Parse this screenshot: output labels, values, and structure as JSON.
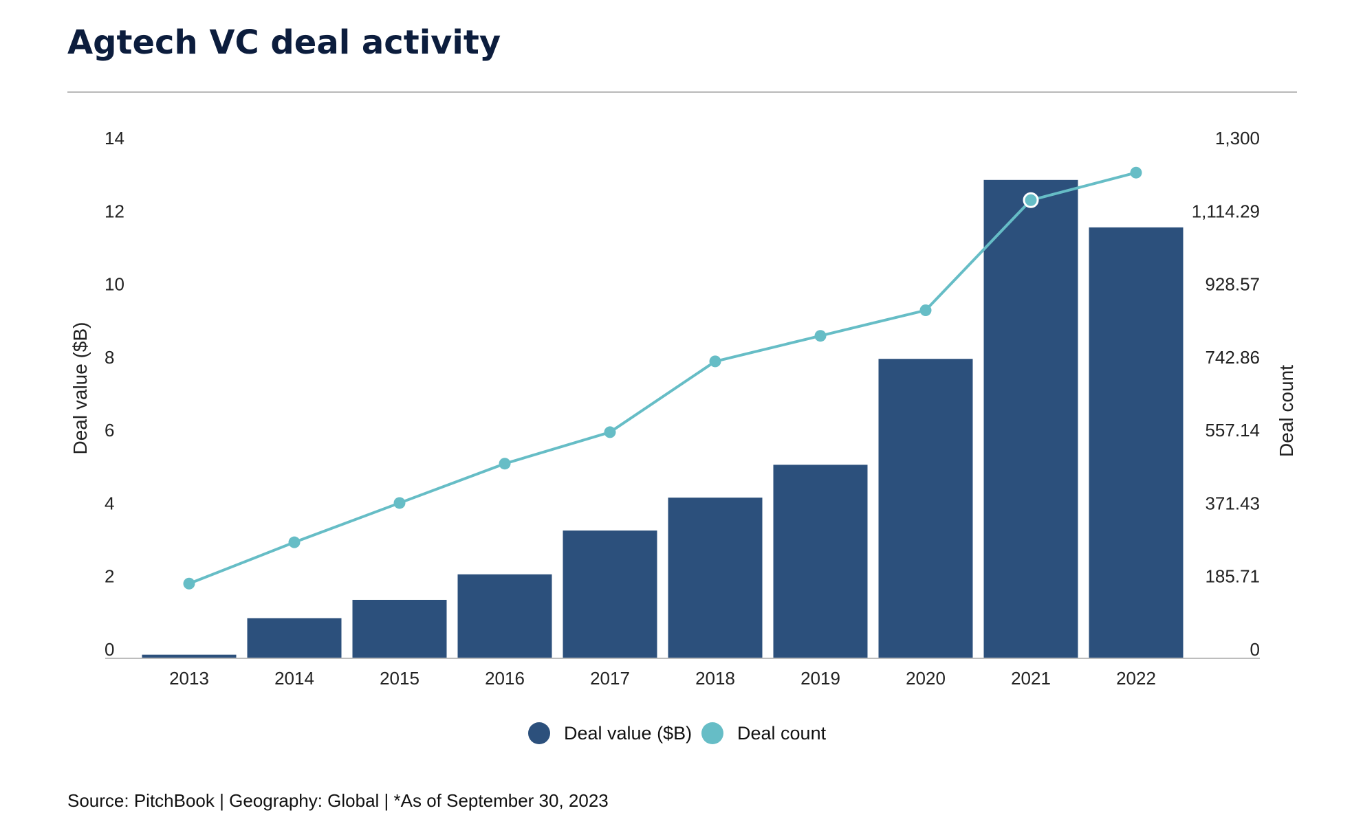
{
  "title": "Agtech VC deal activity",
  "source": "Source: PitchBook | Geography: Global | *As of September 30, 2023",
  "colors": {
    "bar": "#2c507c",
    "line": "#66bdc6",
    "title": "#0c1d3d",
    "divider": "#b9b9b9",
    "axis": "#bdbdbd"
  },
  "chart_data": {
    "type": "bar",
    "categories": [
      "2013",
      "2014",
      "2015",
      "2016",
      "2017",
      "2018",
      "2019",
      "2020",
      "2021",
      "2022"
    ],
    "series": [
      {
        "name": "Deal value ($B)",
        "type": "bar",
        "axis": "left",
        "values": [
          0.1,
          1.1,
          1.6,
          2.3,
          3.5,
          4.4,
          5.3,
          8.2,
          13.1,
          11.8
        ]
      },
      {
        "name": "Deal count",
        "type": "line",
        "axis": "right",
        "values": [
          190,
          295,
          395,
          495,
          575,
          755,
          820,
          885,
          1165,
          1235
        ]
      }
    ],
    "ylabel": "Deal value ($B)",
    "y2label": "Deal count",
    "ylim": [
      0,
      14
    ],
    "y2lim": [
      0,
      1300
    ],
    "yticks": [
      "0",
      "2",
      "4",
      "6",
      "8",
      "10",
      "12",
      "14"
    ],
    "y2ticks": [
      "0",
      "185.71",
      "371.43",
      "557.14",
      "742.86",
      "928.57",
      "1,114.29",
      "1,300"
    ],
    "legend": [
      "Deal value ($B)",
      "Deal count"
    ],
    "legend_position": "bottom-center",
    "grid": false
  }
}
